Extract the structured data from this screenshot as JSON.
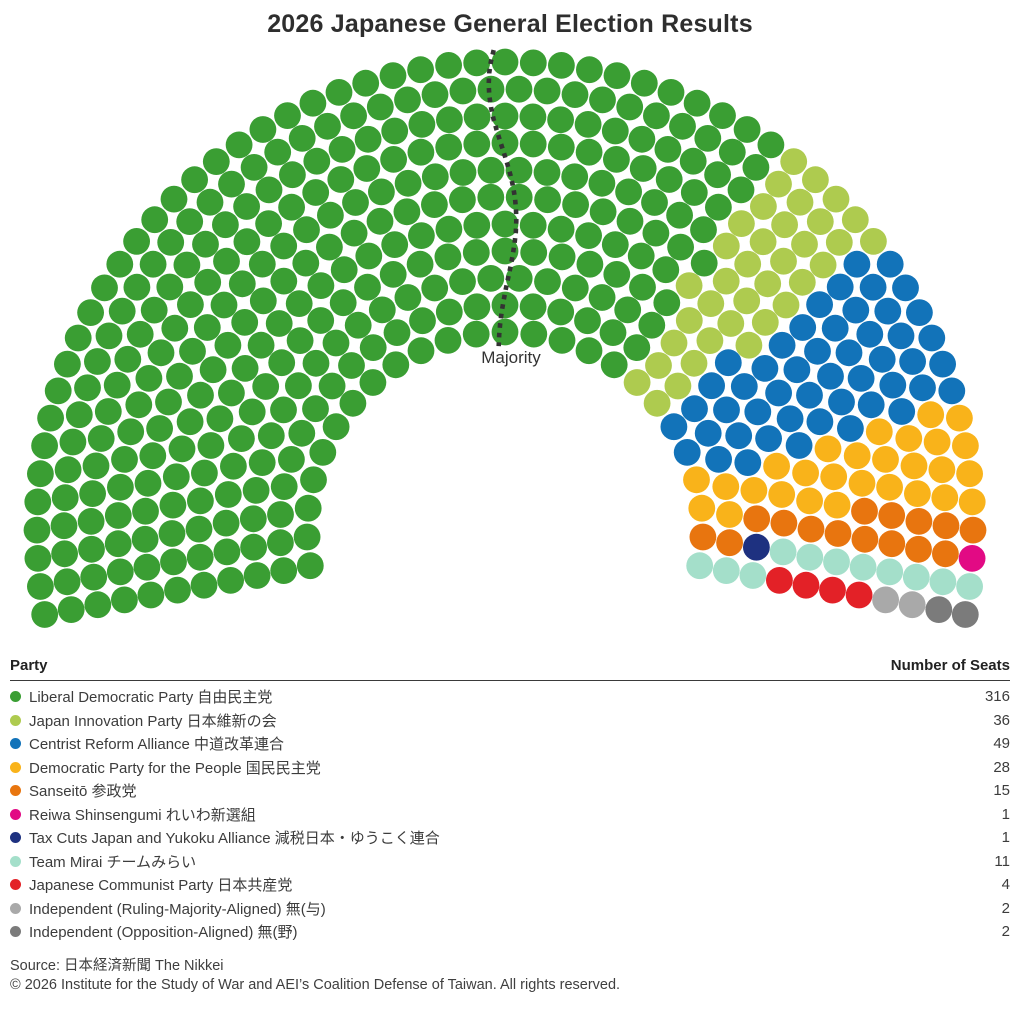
{
  "title": "2026 Japanese General Election Results",
  "majority_label": "Majority",
  "table": {
    "party_header": "Party",
    "seats_header": "Number of Seats"
  },
  "chart_data": {
    "type": "parliament",
    "title": "2026 Japanese General Election Results",
    "total_seats": 465,
    "majority_threshold": 233,
    "arc_span_deg": 200.8,
    "rows": 11,
    "legend_position": "bottom-table",
    "majority_line_color": "#333333",
    "parties": [
      {
        "label": "Liberal Democratic Party 自由民主党",
        "seats": 316,
        "color": "#3a9e33"
      },
      {
        "label": "Japan Innovation Party 日本維新の会",
        "seats": 36,
        "color": "#aecb4f"
      },
      {
        "label": "Centrist Reform Alliance 中道改革連合",
        "seats": 49,
        "color": "#1273b9"
      },
      {
        "label": "Democratic Party for the People 国民民主党",
        "seats": 28,
        "color": "#f9b31a"
      },
      {
        "label": "Sanseitō 参政党",
        "seats": 15,
        "color": "#e8750f"
      },
      {
        "label": "Reiwa Shinsengumi れいわ新選組",
        "seats": 1,
        "color": "#e20a84"
      },
      {
        "label": "Tax Cuts Japan and Yukoku Alliance 減税日本・ゆうこく連合",
        "seats": 1,
        "color": "#1e3180"
      },
      {
        "label": "Team Mirai チームみらい",
        "seats": 11,
        "color": "#a4dfca"
      },
      {
        "label": "Japanese Communist Party 日本共産党",
        "seats": 4,
        "color": "#e32127"
      },
      {
        "label": "Independent (Ruling-Majority-Aligned) 無(与)",
        "seats": 2,
        "color": "#a9a9a9"
      },
      {
        "label": "Independent (Opposition-Aligned) 無(野)",
        "seats": 2,
        "color": "#7b7b7b"
      }
    ]
  },
  "footer": {
    "source": "Source: 日本経済新聞 The Nikkei",
    "copyright": "© 2026 Institute for the Study of War and AEI’s Coalition Defense of Taiwan. All rights reserved."
  }
}
